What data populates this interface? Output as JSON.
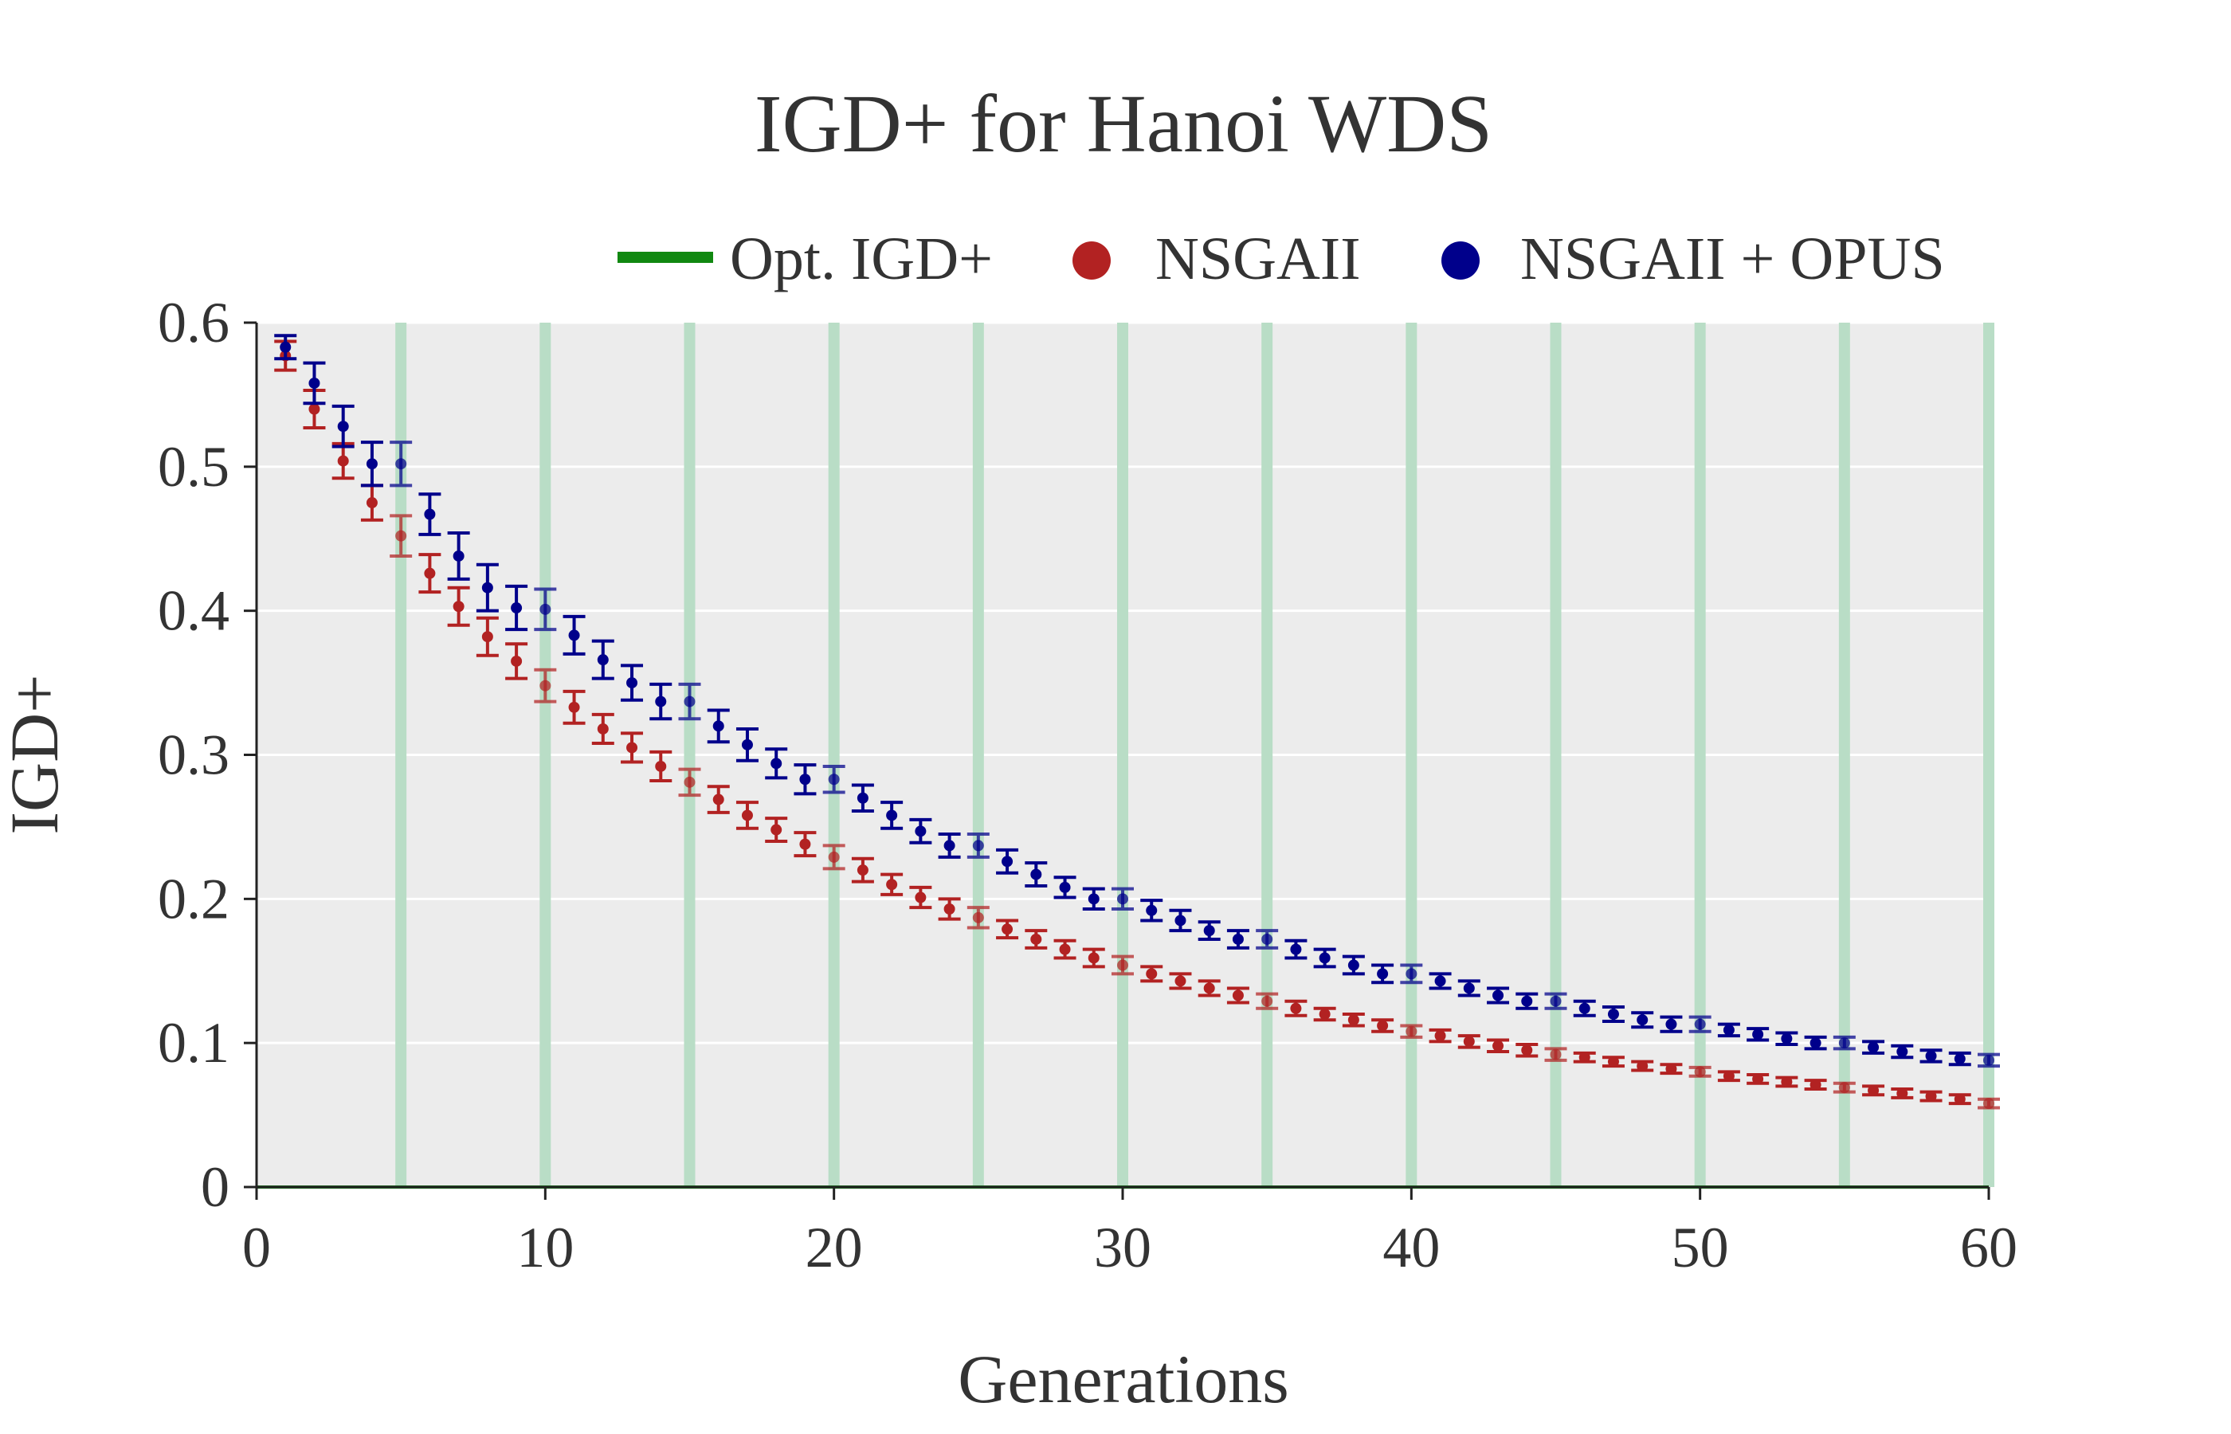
{
  "chart_data": {
    "type": "scatter",
    "title": "IGD+ for Hanoi WDS",
    "xlabel": "Generations",
    "ylabel": "IGD+",
    "xlim": [
      0,
      60
    ],
    "ylim": [
      0,
      0.6
    ],
    "x_ticks": [
      "0",
      "10",
      "20",
      "30",
      "40",
      "50",
      "60"
    ],
    "y_ticks": [
      "0",
      "0.1",
      "0.2",
      "0.3",
      "0.4",
      "0.5",
      "0.6"
    ],
    "grid": true,
    "legend_position": "top",
    "highlight_generations": [
      5,
      10,
      15,
      20,
      25,
      30,
      35,
      40,
      45,
      50,
      55,
      60
    ],
    "optimal": {
      "name": "Opt. IGD+",
      "value": 0,
      "color": "#118811"
    },
    "series": [
      {
        "name": "NSGAII",
        "color": "#b22222",
        "x": [
          1,
          2,
          3,
          4,
          5,
          6,
          7,
          8,
          9,
          10,
          11,
          12,
          13,
          14,
          15,
          16,
          17,
          18,
          19,
          20,
          21,
          22,
          23,
          24,
          25,
          26,
          27,
          28,
          29,
          30,
          31,
          32,
          33,
          34,
          35,
          36,
          37,
          38,
          39,
          40,
          41,
          42,
          43,
          44,
          45,
          46,
          47,
          48,
          49,
          50,
          51,
          52,
          53,
          54,
          55,
          56,
          57,
          58,
          59,
          60
        ],
        "y": [
          0.577,
          0.54,
          0.504,
          0.475,
          0.452,
          0.426,
          0.403,
          0.382,
          0.365,
          0.348,
          0.333,
          0.318,
          0.305,
          0.292,
          0.281,
          0.269,
          0.258,
          0.248,
          0.238,
          0.229,
          0.22,
          0.21,
          0.201,
          0.193,
          0.187,
          0.179,
          0.172,
          0.165,
          0.159,
          0.154,
          0.148,
          0.143,
          0.138,
          0.133,
          0.129,
          0.124,
          0.12,
          0.116,
          0.112,
          0.108,
          0.105,
          0.101,
          0.098,
          0.095,
          0.092,
          0.09,
          0.087,
          0.084,
          0.082,
          0.08,
          0.077,
          0.075,
          0.073,
          0.071,
          0.069,
          0.067,
          0.065,
          0.063,
          0.061,
          0.058
        ],
        "err": [
          0.01,
          0.013,
          0.012,
          0.012,
          0.014,
          0.013,
          0.013,
          0.013,
          0.012,
          0.011,
          0.011,
          0.01,
          0.01,
          0.01,
          0.009,
          0.009,
          0.009,
          0.008,
          0.008,
          0.008,
          0.008,
          0.007,
          0.007,
          0.007,
          0.007,
          0.006,
          0.006,
          0.006,
          0.006,
          0.006,
          0.005,
          0.005,
          0.005,
          0.005,
          0.005,
          0.005,
          0.004,
          0.004,
          0.004,
          0.004,
          0.004,
          0.004,
          0.004,
          0.004,
          0.004,
          0.003,
          0.003,
          0.003,
          0.003,
          0.003,
          0.003,
          0.003,
          0.003,
          0.003,
          0.003,
          0.003,
          0.003,
          0.003,
          0.003,
          0.003
        ]
      },
      {
        "name": "NSGAII + OPUS",
        "color": "#00008b",
        "x": [
          1,
          2,
          3,
          4,
          5,
          6,
          7,
          8,
          9,
          10,
          11,
          12,
          13,
          14,
          15,
          16,
          17,
          18,
          19,
          20,
          21,
          22,
          23,
          24,
          25,
          26,
          27,
          28,
          29,
          30,
          31,
          32,
          33,
          34,
          35,
          36,
          37,
          38,
          39,
          40,
          41,
          42,
          43,
          44,
          45,
          46,
          47,
          48,
          49,
          50,
          51,
          52,
          53,
          54,
          55,
          56,
          57,
          58,
          59,
          60
        ],
        "y": [
          0.583,
          0.558,
          0.528,
          0.502,
          0.502,
          0.467,
          0.438,
          0.416,
          0.402,
          0.401,
          0.383,
          0.366,
          0.35,
          0.337,
          0.337,
          0.32,
          0.307,
          0.294,
          0.283,
          0.283,
          0.27,
          0.258,
          0.247,
          0.237,
          0.237,
          0.226,
          0.217,
          0.208,
          0.2,
          0.2,
          0.192,
          0.185,
          0.178,
          0.172,
          0.172,
          0.165,
          0.159,
          0.154,
          0.148,
          0.148,
          0.143,
          0.138,
          0.133,
          0.129,
          0.129,
          0.124,
          0.12,
          0.116,
          0.113,
          0.113,
          0.109,
          0.106,
          0.103,
          0.1,
          0.1,
          0.097,
          0.094,
          0.091,
          0.089,
          0.088
        ],
        "err": [
          0.008,
          0.014,
          0.014,
          0.015,
          0.015,
          0.014,
          0.016,
          0.016,
          0.015,
          0.014,
          0.013,
          0.013,
          0.012,
          0.012,
          0.012,
          0.011,
          0.011,
          0.01,
          0.01,
          0.009,
          0.009,
          0.009,
          0.008,
          0.008,
          0.008,
          0.008,
          0.008,
          0.007,
          0.007,
          0.007,
          0.007,
          0.007,
          0.006,
          0.006,
          0.006,
          0.006,
          0.006,
          0.006,
          0.006,
          0.006,
          0.005,
          0.005,
          0.005,
          0.005,
          0.005,
          0.005,
          0.005,
          0.005,
          0.005,
          0.005,
          0.004,
          0.004,
          0.004,
          0.004,
          0.004,
          0.004,
          0.004,
          0.004,
          0.004,
          0.004
        ]
      }
    ]
  }
}
